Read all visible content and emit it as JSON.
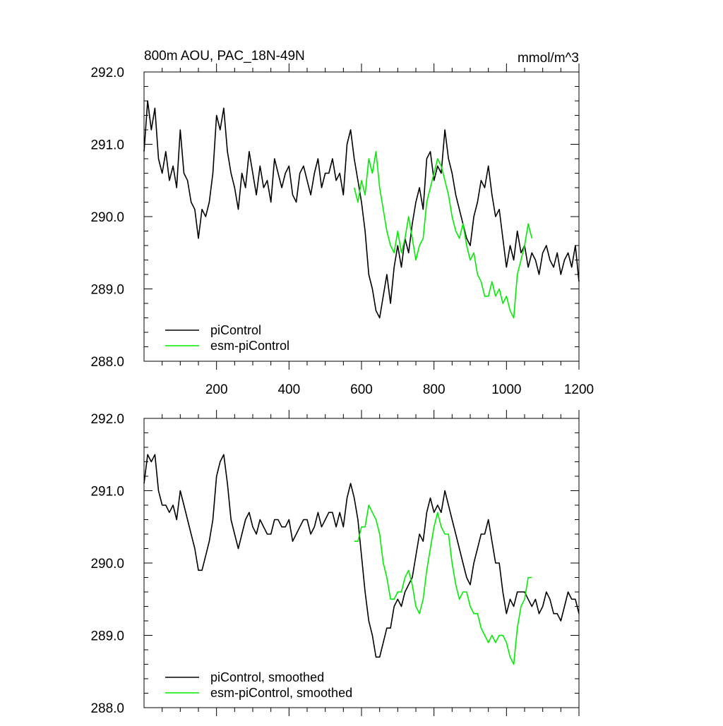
{
  "figure": {
    "panels": [
      {
        "id": "top",
        "title_left": "800m AOU, PAC_18N-49N",
        "title_right": "mmol/m^3",
        "legend": [
          {
            "label": "piControl",
            "color": "#000000"
          },
          {
            "label": "esm-piControl",
            "color": "#00ee00"
          }
        ]
      },
      {
        "id": "bottom",
        "title_left": "",
        "title_right": "",
        "legend": [
          {
            "label": "piControl, smoothed",
            "color": "#000000"
          },
          {
            "label": "esm-piControl, smoothed",
            "color": "#00ee00"
          }
        ]
      }
    ]
  },
  "chart_data": [
    {
      "type": "line",
      "title": "800m AOU, PAC_18N-49N",
      "units": "mmol/m^3",
      "xlim": [
        0,
        1200
      ],
      "ylim": [
        288.0,
        292.0
      ],
      "xticks": [
        200,
        400,
        600,
        800,
        1000,
        1200
      ],
      "yticks": [
        288.0,
        289.0,
        290.0,
        291.0,
        292.0
      ],
      "ytick_labels": [
        "288.0",
        "289.0",
        "290.0",
        "291.0",
        "292.0"
      ],
      "grid": false,
      "legend_position": "bottom-left",
      "series": [
        {
          "name": "piControl",
          "color": "#000000",
          "x": [
            0,
            10,
            20,
            30,
            40,
            50,
            60,
            70,
            80,
            90,
            100,
            110,
            120,
            130,
            140,
            150,
            160,
            170,
            180,
            190,
            200,
            210,
            220,
            230,
            240,
            250,
            260,
            270,
            280,
            290,
            300,
            310,
            320,
            330,
            340,
            350,
            360,
            370,
            380,
            390,
            400,
            410,
            420,
            430,
            440,
            450,
            460,
            470,
            480,
            490,
            500,
            510,
            520,
            530,
            540,
            550,
            560,
            570,
            580,
            590,
            600,
            610,
            620,
            630,
            640,
            650,
            660,
            670,
            680,
            690,
            700,
            710,
            720,
            730,
            740,
            750,
            760,
            770,
            780,
            790,
            800,
            810,
            820,
            830,
            840,
            850,
            860,
            870,
            880,
            890,
            900,
            910,
            920,
            930,
            940,
            950,
            960,
            970,
            980,
            990,
            1000,
            1010,
            1020,
            1030,
            1040,
            1050,
            1060,
            1070,
            1080,
            1090,
            1100,
            1110,
            1120,
            1130,
            1140,
            1150,
            1160,
            1170,
            1180,
            1190,
            1200
          ],
          "values": [
            290.9,
            291.6,
            291.2,
            291.5,
            290.8,
            290.6,
            290.9,
            290.5,
            290.7,
            290.4,
            291.2,
            290.6,
            290.5,
            290.2,
            290.1,
            289.7,
            290.1,
            290.0,
            290.2,
            290.6,
            291.4,
            291.2,
            291.5,
            290.9,
            290.6,
            290.4,
            290.1,
            290.6,
            290.4,
            290.9,
            290.6,
            290.3,
            290.7,
            290.4,
            290.5,
            290.2,
            290.8,
            290.6,
            290.4,
            290.6,
            290.7,
            290.3,
            290.2,
            290.6,
            290.7,
            290.5,
            290.3,
            290.6,
            290.8,
            290.4,
            290.6,
            290.6,
            290.8,
            290.5,
            290.6,
            290.3,
            291.0,
            291.2,
            290.8,
            290.5,
            290.2,
            289.8,
            289.2,
            289.0,
            288.7,
            288.6,
            288.9,
            289.2,
            288.8,
            289.3,
            289.6,
            289.3,
            289.7,
            289.5,
            289.9,
            290.2,
            290.4,
            290.1,
            290.8,
            290.9,
            290.5,
            290.7,
            290.6,
            291.2,
            290.8,
            290.6,
            290.3,
            290.1,
            289.9,
            289.7,
            289.6,
            290.0,
            290.2,
            290.5,
            290.4,
            290.7,
            290.3,
            290.0,
            290.1,
            289.7,
            289.3,
            289.6,
            289.4,
            289.8,
            289.5,
            289.6,
            289.3,
            289.5,
            289.4,
            289.2,
            289.5,
            289.6,
            289.4,
            289.3,
            289.5,
            289.2,
            289.4,
            289.5,
            289.3,
            289.6,
            289.1
          ]
        },
        {
          "name": "esm-piControl",
          "color": "#00ee00",
          "x": [
            580,
            590,
            600,
            610,
            620,
            630,
            640,
            650,
            660,
            670,
            680,
            690,
            700,
            710,
            720,
            730,
            740,
            750,
            760,
            770,
            780,
            790,
            800,
            810,
            820,
            830,
            840,
            850,
            860,
            870,
            880,
            890,
            900,
            910,
            920,
            930,
            940,
            950,
            960,
            970,
            980,
            990,
            1000,
            1010,
            1020,
            1030,
            1040,
            1050,
            1060,
            1070
          ],
          "values": [
            290.4,
            290.2,
            290.5,
            290.3,
            290.8,
            290.6,
            290.9,
            290.4,
            290.1,
            289.8,
            289.6,
            289.5,
            289.8,
            289.5,
            289.7,
            290.0,
            289.7,
            289.4,
            289.6,
            289.7,
            290.2,
            290.4,
            290.6,
            290.8,
            290.7,
            290.5,
            290.3,
            290.0,
            289.8,
            289.7,
            289.9,
            289.6,
            289.4,
            289.5,
            289.2,
            289.1,
            288.9,
            288.9,
            289.1,
            288.9,
            289.0,
            288.8,
            288.9,
            288.7,
            288.6,
            289.2,
            289.4,
            289.6,
            289.9,
            289.7
          ]
        }
      ]
    },
    {
      "type": "line",
      "title": "",
      "xlim": [
        0,
        1200
      ],
      "ylim": [
        288.0,
        292.0
      ],
      "xticks": [
        200,
        400,
        600,
        800,
        1000,
        1200
      ],
      "yticks": [
        288.0,
        289.0,
        290.0,
        291.0,
        292.0
      ],
      "ytick_labels": [
        "288.0",
        "289.0",
        "290.0",
        "291.0",
        "292.0"
      ],
      "grid": false,
      "legend_position": "bottom-left",
      "series": [
        {
          "name": "piControl, smoothed",
          "color": "#000000",
          "x": [
            0,
            10,
            20,
            30,
            40,
            50,
            60,
            70,
            80,
            90,
            100,
            110,
            120,
            130,
            140,
            150,
            160,
            170,
            180,
            190,
            200,
            210,
            220,
            230,
            240,
            250,
            260,
            270,
            280,
            290,
            300,
            310,
            320,
            330,
            340,
            350,
            360,
            370,
            380,
            390,
            400,
            410,
            420,
            430,
            440,
            450,
            460,
            470,
            480,
            490,
            500,
            510,
            520,
            530,
            540,
            550,
            560,
            570,
            580,
            590,
            600,
            610,
            620,
            630,
            640,
            650,
            660,
            670,
            680,
            690,
            700,
            710,
            720,
            730,
            740,
            750,
            760,
            770,
            780,
            790,
            800,
            810,
            820,
            830,
            840,
            850,
            860,
            870,
            880,
            890,
            900,
            910,
            920,
            930,
            940,
            950,
            960,
            970,
            980,
            990,
            1000,
            1010,
            1020,
            1030,
            1040,
            1050,
            1060,
            1070,
            1080,
            1090,
            1100,
            1110,
            1120,
            1130,
            1140,
            1150,
            1160,
            1170,
            1180,
            1190,
            1200
          ],
          "values": [
            291.1,
            291.5,
            291.4,
            291.5,
            291.0,
            290.8,
            290.8,
            290.7,
            290.8,
            290.6,
            291.0,
            290.8,
            290.6,
            290.4,
            290.2,
            289.9,
            289.9,
            290.1,
            290.3,
            290.6,
            291.2,
            291.4,
            291.5,
            291.1,
            290.6,
            290.4,
            290.2,
            290.4,
            290.6,
            290.7,
            290.5,
            290.4,
            290.6,
            290.5,
            290.4,
            290.4,
            290.6,
            290.6,
            290.5,
            290.5,
            290.6,
            290.3,
            290.4,
            290.5,
            290.6,
            290.6,
            290.4,
            290.5,
            290.7,
            290.5,
            290.6,
            290.7,
            290.7,
            290.5,
            290.7,
            290.5,
            290.9,
            291.1,
            290.9,
            290.6,
            290.1,
            289.6,
            289.2,
            289.0,
            288.7,
            288.7,
            288.9,
            289.1,
            289.1,
            289.4,
            289.5,
            289.4,
            289.6,
            289.7,
            289.8,
            290.1,
            290.4,
            290.3,
            290.7,
            290.9,
            290.7,
            290.8,
            290.7,
            291.0,
            290.8,
            290.6,
            290.4,
            290.2,
            290.0,
            289.8,
            289.7,
            290.0,
            290.2,
            290.4,
            290.4,
            290.6,
            290.3,
            290.0,
            290.0,
            289.6,
            289.3,
            289.5,
            289.4,
            289.6,
            289.6,
            289.6,
            289.5,
            289.4,
            289.5,
            289.3,
            289.4,
            289.6,
            289.5,
            289.3,
            289.3,
            289.2,
            289.4,
            289.6,
            289.5,
            289.5,
            289.3
          ]
        },
        {
          "name": "esm-piControl, smoothed",
          "color": "#00ee00",
          "x": [
            580,
            590,
            600,
            610,
            620,
            630,
            640,
            650,
            660,
            670,
            680,
            690,
            700,
            710,
            720,
            730,
            740,
            750,
            760,
            770,
            780,
            790,
            800,
            810,
            820,
            830,
            840,
            850,
            860,
            870,
            880,
            890,
            900,
            910,
            920,
            930,
            940,
            950,
            960,
            970,
            980,
            990,
            1000,
            1010,
            1020,
            1030,
            1040,
            1050,
            1060,
            1070
          ],
          "values": [
            290.3,
            290.3,
            290.5,
            290.5,
            290.8,
            290.7,
            290.6,
            290.4,
            290.0,
            289.8,
            289.5,
            289.5,
            289.6,
            289.6,
            289.8,
            289.9,
            289.7,
            289.4,
            289.3,
            289.5,
            289.9,
            290.2,
            290.5,
            290.7,
            290.5,
            290.4,
            290.4,
            290.0,
            289.7,
            289.5,
            289.6,
            289.6,
            289.4,
            289.3,
            289.3,
            289.1,
            289.0,
            288.9,
            289.0,
            288.9,
            289.0,
            289.0,
            288.9,
            288.7,
            288.6,
            289.1,
            289.4,
            289.5,
            289.8,
            289.8
          ]
        }
      ]
    }
  ]
}
